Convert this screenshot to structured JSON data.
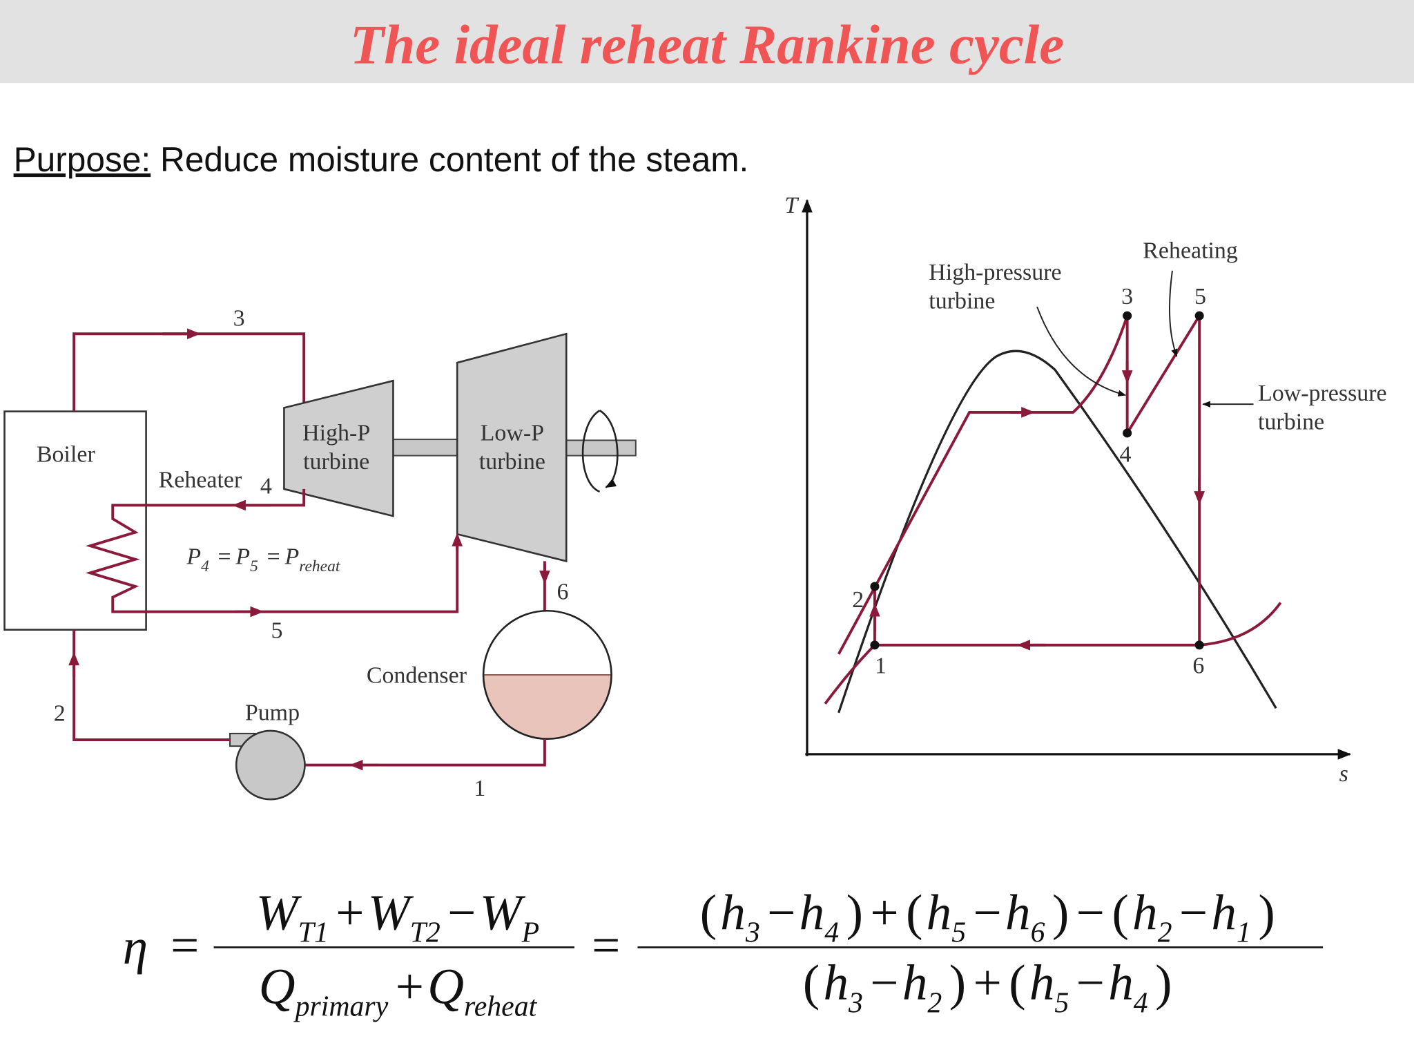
{
  "header": {
    "title": "The ideal reheat Rankine cycle"
  },
  "purpose": {
    "label": "Purpose:",
    "text": "Reduce moisture content of the steam."
  },
  "schematic": {
    "boiler": "Boiler",
    "reheater": "Reheater",
    "hp_turbine": [
      "High-P",
      "turbine"
    ],
    "lp_turbine": [
      "Low-P",
      "turbine"
    ],
    "condenser": "Condenser",
    "pump": "Pump",
    "states": [
      "1",
      "2",
      "3",
      "4",
      "5",
      "6"
    ],
    "pressure_relation": [
      {
        "text": "P",
        "sub": "4"
      },
      {
        "text": "="
      },
      {
        "text": "P",
        "sub": "5"
      },
      {
        "text": "="
      },
      {
        "text": "P",
        "sub": "reheat"
      }
    ]
  },
  "ts_diagram": {
    "y_axis": "T",
    "x_axis": "s",
    "hp_label": [
      "High-pressure",
      "turbine"
    ],
    "reheating": "Reheating",
    "lp_label": [
      "Low-pressure",
      "turbine"
    ],
    "states": [
      "1",
      "2",
      "3",
      "4",
      "5",
      "6"
    ]
  },
  "equation": {
    "lhs": "η",
    "equals": "=",
    "fraction1": {
      "numerator": [
        {
          "text": "W",
          "sub": "T1"
        },
        {
          "text": "+"
        },
        {
          "text": "W",
          "sub": "T2"
        },
        {
          "text": "−"
        },
        {
          "text": "W",
          "sub": "P"
        }
      ],
      "denominator": [
        {
          "text": "Q",
          "sub": "primary"
        },
        {
          "text": "+"
        },
        {
          "text": "Q",
          "sub": "reheat"
        }
      ]
    },
    "fraction2": {
      "numerator": [
        {
          "text": "("
        },
        {
          "text": "h",
          "sub": "3"
        },
        {
          "text": "−"
        },
        {
          "text": "h",
          "sub": "4"
        },
        {
          "text": ")"
        },
        {
          "text": "+"
        },
        {
          "text": "("
        },
        {
          "text": "h",
          "sub": "5"
        },
        {
          "text": "−"
        },
        {
          "text": "h",
          "sub": "6"
        },
        {
          "text": ")"
        },
        {
          "text": "−"
        },
        {
          "text": "("
        },
        {
          "text": "h",
          "sub": "2"
        },
        {
          "text": "−"
        },
        {
          "text": "h",
          "sub": "1"
        },
        {
          "text": ")"
        }
      ],
      "denominator": [
        {
          "text": "("
        },
        {
          "text": "h",
          "sub": "3"
        },
        {
          "text": "−"
        },
        {
          "text": "h",
          "sub": "2"
        },
        {
          "text": ")"
        },
        {
          "text": "+"
        },
        {
          "text": "("
        },
        {
          "text": "h",
          "sub": "5"
        },
        {
          "text": "−"
        },
        {
          "text": "h",
          "sub": "4"
        },
        {
          "text": ")"
        }
      ]
    }
  }
}
